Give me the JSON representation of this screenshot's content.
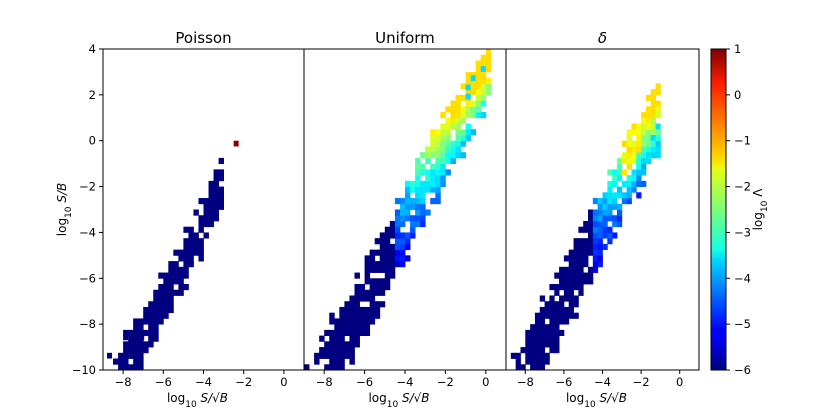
{
  "chart_data": {
    "type": "heatmap",
    "panels": [
      {
        "title": "Poisson",
        "title_italic": false,
        "has_y_ticklabels": true,
        "ylabel": "log10 S/B"
      },
      {
        "title": "Uniform",
        "title_italic": false,
        "has_y_ticklabels": false,
        "ylabel": ""
      },
      {
        "title": "δ",
        "title_italic": true,
        "has_y_ticklabels": false,
        "ylabel": ""
      }
    ],
    "xlabel": "log10 S/√B",
    "xlim": [
      -9,
      1
    ],
    "ylim": [
      -10,
      4
    ],
    "x_ticks": [
      -8,
      -6,
      -4,
      -2,
      0
    ],
    "y_ticks": [
      -10,
      -8,
      -6,
      -4,
      -2,
      0,
      2,
      4
    ],
    "colorbar": {
      "label": "log10 Λ",
      "range": [
        -6,
        1
      ],
      "ticks": [
        -6,
        -5,
        -4,
        -3,
        -2,
        -1,
        0,
        1
      ],
      "colormap": "jet"
    },
    "bin_size": 0.25,
    "density_summary": "2D histogram; log10 S/B rises with log10 S/√B in a narrow diagonal band; Poisson panel mostly at log10 Λ = -6 with one isolated bin near (-2.4, -0.1) at about 1; Uniform and δ panels rise to about -2 to -1.5 along the upper part of the band"
  },
  "tick_text": {
    "x": [
      "−8",
      "−6",
      "−4",
      "−2",
      "0"
    ],
    "y": [
      "−10",
      "−8",
      "−6",
      "−4",
      "−2",
      "0",
      "2",
      "4"
    ],
    "cbar": [
      "−6",
      "−5",
      "−4",
      "−3",
      "−2",
      "−1",
      "0",
      "1"
    ]
  },
  "labels": {
    "xlabel_base": "log",
    "xlabel_sub": "10",
    "xlabel_rest": " S/√B",
    "ylabel_base": "log",
    "ylabel_sub": "10",
    "ylabel_rest": " S/B",
    "cbar_base": "log",
    "cbar_sub": "10",
    "cbar_rest": " Λ"
  }
}
